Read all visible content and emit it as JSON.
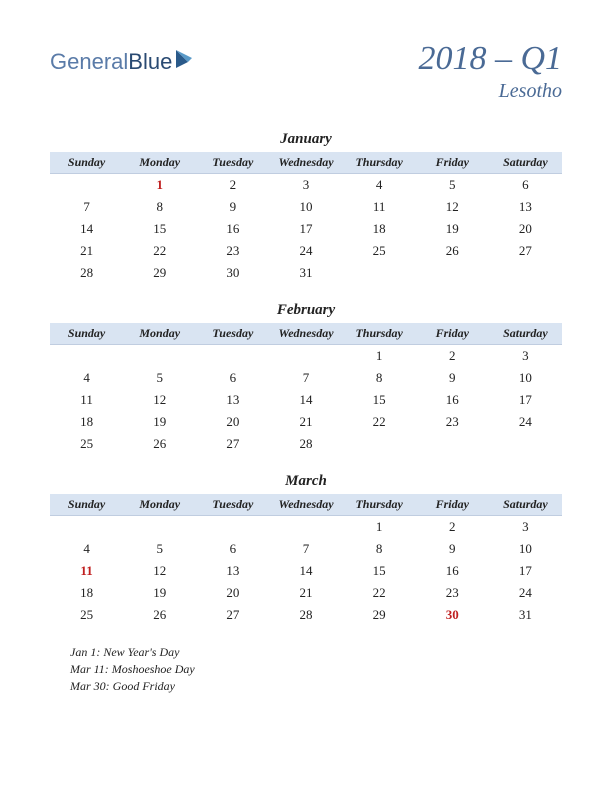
{
  "logo": {
    "word1": "General",
    "word2": "Blue"
  },
  "header": {
    "quarter": "2018 – Q1",
    "country": "Lesotho"
  },
  "dayNames": [
    "Sunday",
    "Monday",
    "Tuesday",
    "Wednesday",
    "Thursday",
    "Friday",
    "Saturday"
  ],
  "months": [
    {
      "name": "January",
      "weeks": [
        [
          {
            "d": ""
          },
          {
            "d": "1",
            "h": true
          },
          {
            "d": "2"
          },
          {
            "d": "3"
          },
          {
            "d": "4"
          },
          {
            "d": "5"
          },
          {
            "d": "6"
          }
        ],
        [
          {
            "d": "7"
          },
          {
            "d": "8"
          },
          {
            "d": "9"
          },
          {
            "d": "10"
          },
          {
            "d": "11"
          },
          {
            "d": "12"
          },
          {
            "d": "13"
          }
        ],
        [
          {
            "d": "14"
          },
          {
            "d": "15"
          },
          {
            "d": "16"
          },
          {
            "d": "17"
          },
          {
            "d": "18"
          },
          {
            "d": "19"
          },
          {
            "d": "20"
          }
        ],
        [
          {
            "d": "21"
          },
          {
            "d": "22"
          },
          {
            "d": "23"
          },
          {
            "d": "24"
          },
          {
            "d": "25"
          },
          {
            "d": "26"
          },
          {
            "d": "27"
          }
        ],
        [
          {
            "d": "28"
          },
          {
            "d": "29"
          },
          {
            "d": "30"
          },
          {
            "d": "31"
          },
          {
            "d": ""
          },
          {
            "d": ""
          },
          {
            "d": ""
          }
        ]
      ]
    },
    {
      "name": "February",
      "weeks": [
        [
          {
            "d": ""
          },
          {
            "d": ""
          },
          {
            "d": ""
          },
          {
            "d": ""
          },
          {
            "d": "1"
          },
          {
            "d": "2"
          },
          {
            "d": "3"
          }
        ],
        [
          {
            "d": "4"
          },
          {
            "d": "5"
          },
          {
            "d": "6"
          },
          {
            "d": "7"
          },
          {
            "d": "8"
          },
          {
            "d": "9"
          },
          {
            "d": "10"
          }
        ],
        [
          {
            "d": "11"
          },
          {
            "d": "12"
          },
          {
            "d": "13"
          },
          {
            "d": "14"
          },
          {
            "d": "15"
          },
          {
            "d": "16"
          },
          {
            "d": "17"
          }
        ],
        [
          {
            "d": "18"
          },
          {
            "d": "19"
          },
          {
            "d": "20"
          },
          {
            "d": "21"
          },
          {
            "d": "22"
          },
          {
            "d": "23"
          },
          {
            "d": "24"
          }
        ],
        [
          {
            "d": "25"
          },
          {
            "d": "26"
          },
          {
            "d": "27"
          },
          {
            "d": "28"
          },
          {
            "d": ""
          },
          {
            "d": ""
          },
          {
            "d": ""
          }
        ]
      ]
    },
    {
      "name": "March",
      "weeks": [
        [
          {
            "d": ""
          },
          {
            "d": ""
          },
          {
            "d": ""
          },
          {
            "d": ""
          },
          {
            "d": "1"
          },
          {
            "d": "2"
          },
          {
            "d": "3"
          }
        ],
        [
          {
            "d": "4"
          },
          {
            "d": "5"
          },
          {
            "d": "6"
          },
          {
            "d": "7"
          },
          {
            "d": "8"
          },
          {
            "d": "9"
          },
          {
            "d": "10"
          }
        ],
        [
          {
            "d": "11",
            "h": true
          },
          {
            "d": "12"
          },
          {
            "d": "13"
          },
          {
            "d": "14"
          },
          {
            "d": "15"
          },
          {
            "d": "16"
          },
          {
            "d": "17"
          }
        ],
        [
          {
            "d": "18"
          },
          {
            "d": "19"
          },
          {
            "d": "20"
          },
          {
            "d": "21"
          },
          {
            "d": "22"
          },
          {
            "d": "23"
          },
          {
            "d": "24"
          }
        ],
        [
          {
            "d": "25"
          },
          {
            "d": "26"
          },
          {
            "d": "27"
          },
          {
            "d": "28"
          },
          {
            "d": "29"
          },
          {
            "d": "30",
            "h": true
          },
          {
            "d": "31"
          }
        ]
      ]
    }
  ],
  "holidays": [
    "Jan 1: New Year's Day",
    "Mar 11: Moshoeshoe Day",
    "Mar 30: Good Friday"
  ],
  "colors": {
    "headerBg": "#d9e4f2",
    "titleColor": "#4a6a95",
    "holidayColor": "#c02020"
  }
}
